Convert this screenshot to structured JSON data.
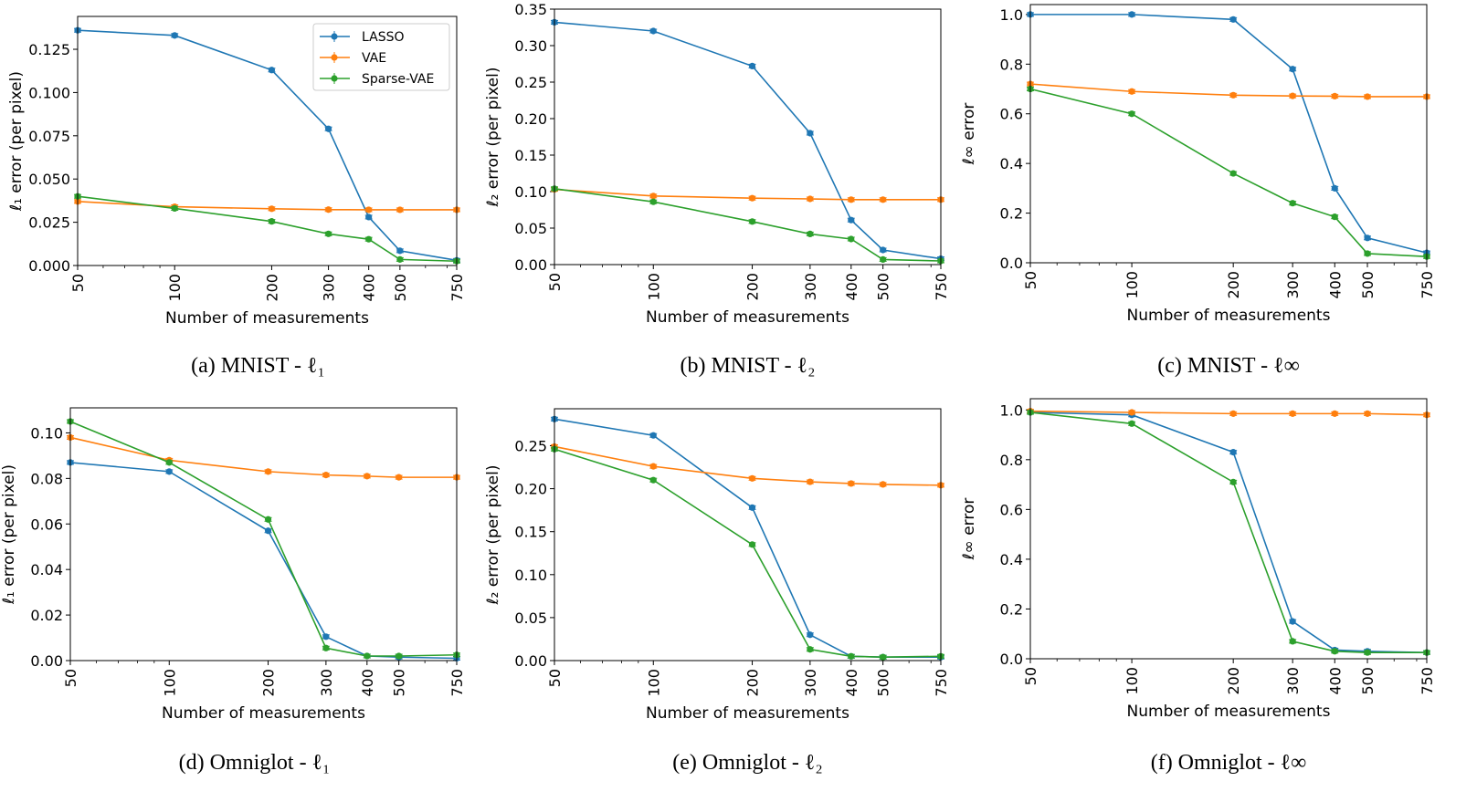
{
  "colors": {
    "LASSO": "#1f77b4",
    "VAE": "#ff7f0e",
    "Sparse-VAE": "#2ca02c"
  },
  "chart_data": [
    {
      "type": "line",
      "caption": "(a) MNIST - ℓ₁",
      "xlabel": "Number of measurements",
      "ylabel": "ℓ₁ error (per pixel)",
      "x": [
        50,
        100,
        200,
        300,
        400,
        500,
        750
      ],
      "x_scale": "log",
      "x_tick_labels": [
        "50",
        "100",
        "200",
        "300",
        "400",
        "500",
        "750"
      ],
      "ylim": [
        0,
        0.144
      ],
      "y_ticks": [
        0,
        0.025,
        0.05,
        0.075,
        0.1,
        0.125
      ],
      "y_tick_labels": [
        "0.000",
        "0.025",
        "0.050",
        "0.075",
        "0.100",
        "0.125"
      ],
      "legend": "top-right",
      "series": [
        {
          "name": "LASSO",
          "values": [
            0.136,
            0.133,
            0.113,
            0.079,
            0.028,
            0.0085,
            0.003
          ]
        },
        {
          "name": "VAE",
          "values": [
            0.037,
            0.034,
            0.0328,
            0.0323,
            0.0322,
            0.0322,
            0.0322
          ]
        },
        {
          "name": "Sparse-VAE",
          "values": [
            0.04,
            0.033,
            0.0255,
            0.0183,
            0.0152,
            0.0035,
            0.0025
          ]
        }
      ]
    },
    {
      "type": "line",
      "caption": "(b) MNIST - ℓ₂",
      "xlabel": "Number of measurements",
      "ylabel": "ℓ₂ error (per pixel)",
      "x": [
        50,
        100,
        200,
        300,
        400,
        500,
        750
      ],
      "x_scale": "log",
      "x_tick_labels": [
        "50",
        "100",
        "200",
        "300",
        "400",
        "500",
        "750"
      ],
      "ylim": [
        0,
        0.35
      ],
      "y_ticks": [
        0,
        0.05,
        0.1,
        0.15,
        0.2,
        0.25,
        0.3,
        0.35
      ],
      "y_tick_labels": [
        "0.00",
        "0.05",
        "0.10",
        "0.15",
        "0.20",
        "0.25",
        "0.30",
        "0.35"
      ],
      "series": [
        {
          "name": "LASSO",
          "values": [
            0.332,
            0.32,
            0.272,
            0.18,
            0.061,
            0.02,
            0.008
          ]
        },
        {
          "name": "VAE",
          "values": [
            0.103,
            0.094,
            0.091,
            0.09,
            0.089,
            0.089,
            0.089
          ]
        },
        {
          "name": "Sparse-VAE",
          "values": [
            0.104,
            0.086,
            0.059,
            0.042,
            0.035,
            0.007,
            0.005
          ]
        }
      ]
    },
    {
      "type": "line",
      "caption": "(c) MNIST - ℓ∞",
      "xlabel": "Number of measurements",
      "ylabel": "ℓ∞ error",
      "x": [
        50,
        100,
        200,
        300,
        400,
        500,
        750
      ],
      "x_scale": "log",
      "x_tick_labels": [
        "50",
        "100",
        "200",
        "300",
        "400",
        "500",
        "750"
      ],
      "ylim": [
        0,
        1.04
      ],
      "y_ticks": [
        0,
        0.2,
        0.4,
        0.6,
        0.8,
        1.0
      ],
      "y_tick_labels": [
        "0.0",
        "0.2",
        "0.4",
        "0.6",
        "0.8",
        "1.0"
      ],
      "series": [
        {
          "name": "LASSO",
          "values": [
            1.0,
            1.0,
            0.98,
            0.78,
            0.3,
            0.1,
            0.04
          ]
        },
        {
          "name": "VAE",
          "values": [
            0.72,
            0.69,
            0.675,
            0.672,
            0.671,
            0.669,
            0.669
          ]
        },
        {
          "name": "Sparse-VAE",
          "values": [
            0.7,
            0.6,
            0.36,
            0.24,
            0.185,
            0.037,
            0.025
          ]
        }
      ]
    },
    {
      "type": "line",
      "caption": "(d) Omniglot - ℓ₁",
      "xlabel": "Number of measurements",
      "ylabel": "ℓ₁ error (per pixel)",
      "x": [
        50,
        100,
        200,
        300,
        400,
        500,
        750
      ],
      "x_scale": "log",
      "x_tick_labels": [
        "50",
        "100",
        "200",
        "300",
        "400",
        "500",
        "750"
      ],
      "ylim": [
        0,
        0.111
      ],
      "y_ticks": [
        0,
        0.02,
        0.04,
        0.06,
        0.08,
        0.1
      ],
      "y_tick_labels": [
        "0.00",
        "0.02",
        "0.04",
        "0.06",
        "0.08",
        "0.10"
      ],
      "series": [
        {
          "name": "LASSO",
          "values": [
            0.087,
            0.083,
            0.057,
            0.0105,
            0.002,
            0.0015,
            0.001
          ]
        },
        {
          "name": "VAE",
          "values": [
            0.098,
            0.088,
            0.083,
            0.0815,
            0.081,
            0.0805,
            0.0805
          ]
        },
        {
          "name": "Sparse-VAE",
          "values": [
            0.105,
            0.087,
            0.062,
            0.0055,
            0.002,
            0.002,
            0.0025
          ]
        }
      ]
    },
    {
      "type": "line",
      "caption": "(e) Omniglot - ℓ₂",
      "xlabel": "Number of measurements",
      "ylabel": "ℓ₂ error (per pixel)",
      "x": [
        50,
        100,
        200,
        300,
        400,
        500,
        750
      ],
      "x_scale": "log",
      "x_tick_labels": [
        "50",
        "100",
        "200",
        "300",
        "400",
        "500",
        "750"
      ],
      "ylim": [
        0,
        0.293
      ],
      "y_ticks": [
        0,
        0.05,
        0.1,
        0.15,
        0.2,
        0.25
      ],
      "y_tick_labels": [
        "0.00",
        "0.05",
        "0.10",
        "0.15",
        "0.20",
        "0.25"
      ],
      "series": [
        {
          "name": "LASSO",
          "values": [
            0.281,
            0.262,
            0.178,
            0.03,
            0.005,
            0.004,
            0.004
          ]
        },
        {
          "name": "VAE",
          "values": [
            0.249,
            0.226,
            0.212,
            0.208,
            0.206,
            0.205,
            0.204
          ]
        },
        {
          "name": "Sparse-VAE",
          "values": [
            0.246,
            0.21,
            0.135,
            0.013,
            0.005,
            0.004,
            0.005
          ]
        }
      ]
    },
    {
      "type": "line",
      "caption": "(f) Omniglot - ℓ∞",
      "xlabel": "Number of measurements",
      "ylabel": "ℓ∞ error",
      "x": [
        50,
        100,
        200,
        300,
        400,
        500,
        750
      ],
      "x_scale": "log",
      "x_tick_labels": [
        "50",
        "100",
        "200",
        "300",
        "400",
        "500",
        "750"
      ],
      "ylim": [
        0,
        1.045
      ],
      "y_ticks": [
        0,
        0.2,
        0.4,
        0.6,
        0.8,
        1.0
      ],
      "y_tick_labels": [
        "0.0",
        "0.2",
        "0.4",
        "0.6",
        "0.8",
        "1.0"
      ],
      "series": [
        {
          "name": "LASSO",
          "values": [
            0.99,
            0.98,
            0.83,
            0.15,
            0.035,
            0.03,
            0.025
          ]
        },
        {
          "name": "VAE",
          "values": [
            0.995,
            0.99,
            0.985,
            0.985,
            0.985,
            0.985,
            0.98
          ]
        },
        {
          "name": "Sparse-VAE",
          "values": [
            0.99,
            0.945,
            0.71,
            0.07,
            0.03,
            0.025,
            0.025
          ]
        }
      ]
    }
  ]
}
